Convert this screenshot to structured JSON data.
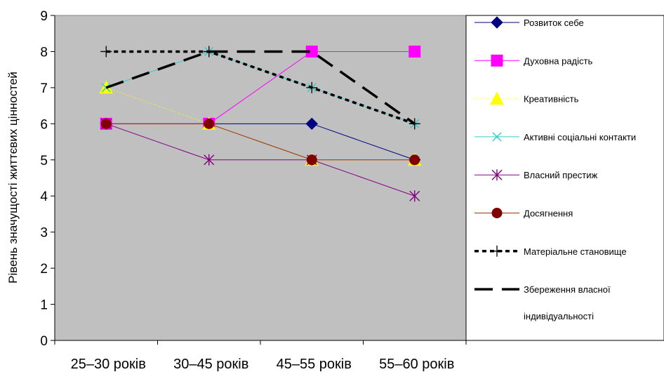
{
  "chart_data": {
    "type": "line",
    "categories": [
      "25–30 років",
      "30–45 років",
      "45–55 років",
      "55–60 років"
    ],
    "ylabel": "Рівень значущості життєвих цінностей",
    "xlabel": "",
    "ylim": [
      0,
      9
    ],
    "yticks": [
      0,
      1,
      2,
      3,
      4,
      5,
      6,
      7,
      8,
      9
    ],
    "grid": false,
    "plot_background": "#c0c0c0",
    "legend_position": "right",
    "series": [
      {
        "name": "Розвиток себе",
        "values": [
          6,
          6,
          6,
          5
        ],
        "color": "#000080",
        "marker": "diamond",
        "line": "solid"
      },
      {
        "name": "Духовна радість",
        "values": [
          6,
          6,
          8,
          8
        ],
        "color": "#ff00ff",
        "marker": "square",
        "line": "solid"
      },
      {
        "name": "Креативність",
        "values": [
          7,
          6,
          5,
          5
        ],
        "color": "#ffff00",
        "marker": "triangle",
        "line": "dotted"
      },
      {
        "name": "Активні соціальні контакти",
        "values": [
          7,
          8,
          7,
          6
        ],
        "color": "#33cccc",
        "marker": "x",
        "line": "solid"
      },
      {
        "name": "Власний престиж",
        "values": [
          6,
          5,
          5,
          4
        ],
        "color": "#800080",
        "marker": "star",
        "line": "solid"
      },
      {
        "name": "Досягнення",
        "values": [
          6,
          6,
          5,
          5
        ],
        "color": "#993300",
        "marker": "circle",
        "line": "solid",
        "marker_color": "#800000"
      },
      {
        "name": "Матеріальне становище",
        "values": [
          8,
          8,
          7,
          6
        ],
        "color": "#000000",
        "marker": "plus",
        "line": "dashed-short"
      },
      {
        "name": "Збереження власної індивідуальності",
        "name_lines": [
          "Збереження власної",
          "індивідуальності"
        ],
        "values": [
          7,
          8,
          8,
          6
        ],
        "color": "#000000",
        "marker": "none",
        "line": "dashed-long"
      }
    ]
  }
}
